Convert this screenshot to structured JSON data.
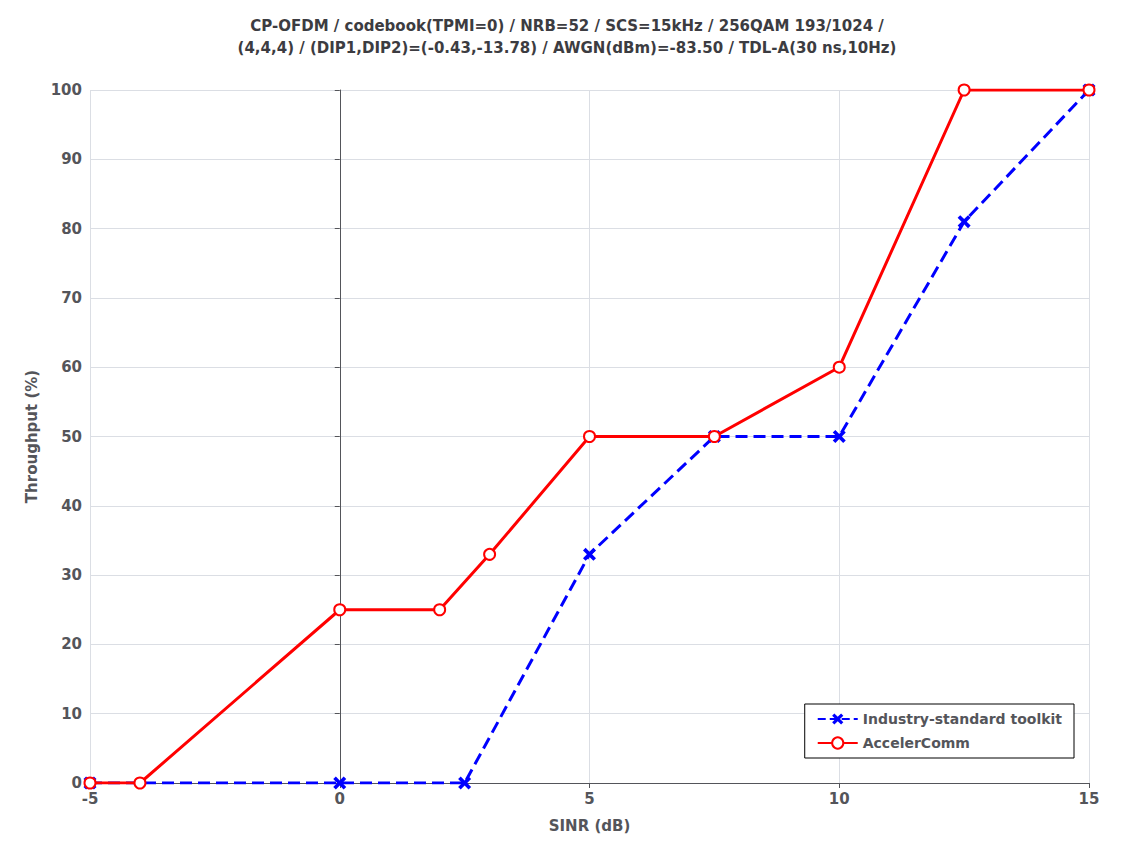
{
  "chart_data": {
    "type": "line",
    "title": "CP-OFDM / codebook(TPMI=0) / NRB=52 / SCS=15kHz / 256QAM 193/1024 /\n(4,4,4) / (DIP1,DIP2)=(-0.43,-13.78) / AWGN(dBm)=-83.50 / TDL-A(30 ns,10Hz)",
    "xlabel": "SINR (dB)",
    "ylabel": "Throughput (%)",
    "xlim": [
      -5,
      15
    ],
    "ylim": [
      0,
      100
    ],
    "xticks": [
      -5,
      0,
      5,
      10,
      15
    ],
    "yticks": [
      0,
      10,
      20,
      30,
      40,
      50,
      60,
      70,
      80,
      90,
      100
    ],
    "grid": true,
    "legend": "lower right",
    "series": [
      {
        "name": "Industry-standard toolkit",
        "color": "#0000FF",
        "marker": "x",
        "line_style": "dashed",
        "x": [
          -5,
          0,
          2.5,
          5,
          7.5,
          10,
          12.5,
          15
        ],
        "values": [
          0,
          0,
          0,
          33,
          50,
          50,
          81,
          100
        ]
      },
      {
        "name": "AccelerComm",
        "color": "#FF0000",
        "marker": "o",
        "line_style": "solid",
        "x": [
          -5,
          -4,
          0,
          2,
          3,
          5,
          7.5,
          10,
          12.5,
          15
        ],
        "values": [
          0,
          0,
          25,
          25,
          33,
          50,
          50,
          60,
          100,
          100
        ]
      }
    ]
  }
}
